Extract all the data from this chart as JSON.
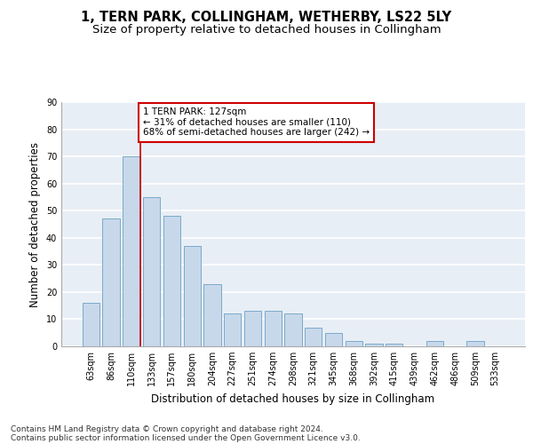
{
  "title": "1, TERN PARK, COLLINGHAM, WETHERBY, LS22 5LY",
  "subtitle": "Size of property relative to detached houses in Collingham",
  "xlabel": "Distribution of detached houses by size in Collingham",
  "ylabel": "Number of detached properties",
  "categories": [
    "63sqm",
    "86sqm",
    "110sqm",
    "133sqm",
    "157sqm",
    "180sqm",
    "204sqm",
    "227sqm",
    "251sqm",
    "274sqm",
    "298sqm",
    "321sqm",
    "345sqm",
    "368sqm",
    "392sqm",
    "415sqm",
    "439sqm",
    "462sqm",
    "486sqm",
    "509sqm",
    "533sqm"
  ],
  "values": [
    16,
    47,
    70,
    55,
    48,
    37,
    23,
    12,
    13,
    13,
    12,
    7,
    5,
    2,
    1,
    1,
    0,
    2,
    0,
    2,
    0
  ],
  "bar_color": "#c8d8eb",
  "bar_edge_color": "#7aaaca",
  "annotation_text": "1 TERN PARK: 127sqm\n← 31% of detached houses are smaller (110)\n68% of semi-detached houses are larger (242) →",
  "annotation_box_color": "#ffffff",
  "annotation_box_edge": "#cc0000",
  "annotation_line_color": "#cc0000",
  "ylim": [
    0,
    90
  ],
  "yticks": [
    0,
    10,
    20,
    30,
    40,
    50,
    60,
    70,
    80,
    90
  ],
  "background_color": "#e8eef5",
  "grid_color": "#ffffff",
  "footer_line1": "Contains HM Land Registry data © Crown copyright and database right 2024.",
  "footer_line2": "Contains public sector information licensed under the Open Government Licence v3.0.",
  "title_fontsize": 10.5,
  "subtitle_fontsize": 9.5,
  "xlabel_fontsize": 8.5,
  "ylabel_fontsize": 8.5,
  "tick_fontsize": 7,
  "footer_fontsize": 6.5,
  "annotation_fontsize": 7.5
}
